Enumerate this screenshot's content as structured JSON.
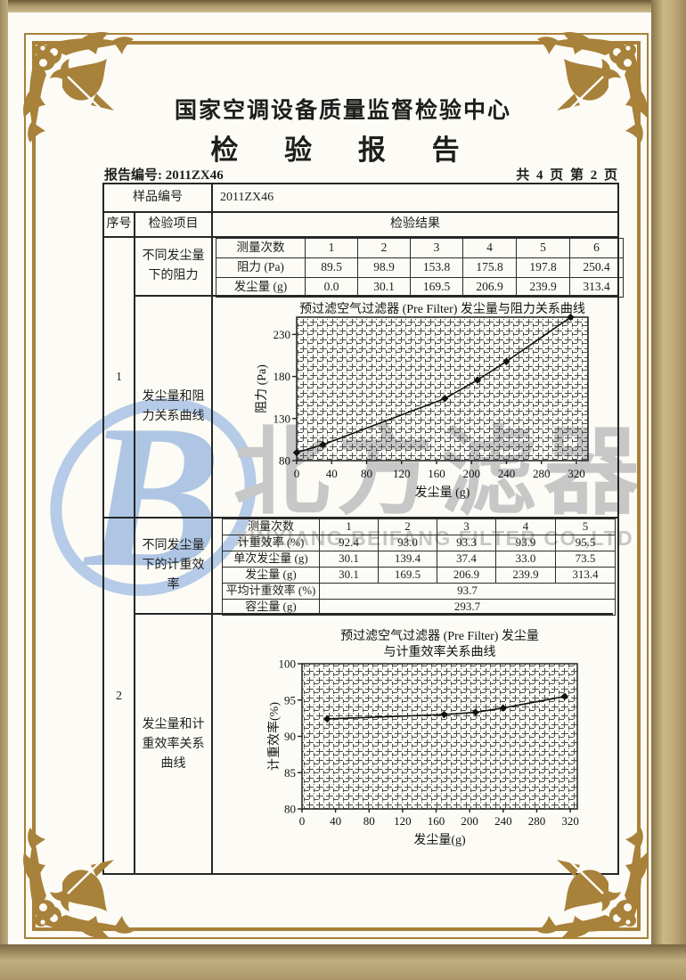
{
  "page": {
    "org_title": "国家空调设备质量监督检验中心",
    "report_title": "检 验 报 告",
    "report_no": "报告编号: 2011ZX46",
    "page_info": "共 4 页 第 2 页"
  },
  "sample": {
    "label": "样品编号",
    "value": "2011ZX46"
  },
  "columns": {
    "serial": "序号",
    "item": "检验项目",
    "result": "检验结果"
  },
  "section1": {
    "serial": "1",
    "item_table": "不同发尘量下的阻力",
    "item_chart": "发尘量和阻力关系曲线",
    "table": {
      "row_count_label": "测量次数",
      "row_resistance_label": "阻力 (Pa)",
      "row_dust_label": "发尘量 (g)",
      "counts": [
        "1",
        "2",
        "3",
        "4",
        "5",
        "6"
      ],
      "resistance": [
        "89.5",
        "98.9",
        "153.8",
        "175.8",
        "197.8",
        "250.4"
      ],
      "dust": [
        "0.0",
        "30.1",
        "169.5",
        "206.9",
        "239.9",
        "313.4"
      ]
    }
  },
  "section2": {
    "serial": "2",
    "item_table": "不同发尘量下的计重效率",
    "item_chart": "发尘量和计重效率关系曲线",
    "table": {
      "row_count_label": "测量次数",
      "row_eff_label": "计重效率 (%)",
      "row_single_label": "单次发尘量 (g)",
      "row_dust_label": "发尘量 (g)",
      "row_avg_label": "平均计重效率 (%)",
      "row_capacity_label": "容尘量 (g)",
      "counts": [
        "1",
        "2",
        "3",
        "4",
        "5"
      ],
      "efficiency": [
        "92.4",
        "93.0",
        "93.3",
        "93.9",
        "95.5"
      ],
      "single_dust": [
        "30.1",
        "139.4",
        "37.4",
        "33.0",
        "73.5"
      ],
      "dust": [
        "30.1",
        "169.5",
        "206.9",
        "239.9",
        "313.4"
      ],
      "avg_efficiency": "93.7",
      "dust_capacity": "293.7"
    }
  },
  "watermark": {
    "logo_letter": "B",
    "cn": "北方滤器",
    "en": "XINXIANG BEIFANG FILTER CO.,LTD",
    "blue": "#b5cbe7",
    "gray": "#c7c7c7"
  },
  "colors": {
    "frame_gold": "#a8813a",
    "ink": "#1e1e1e",
    "paper": "#fcfbf5"
  },
  "chart_data": [
    {
      "type": "line",
      "title": "预过滤空气过滤器 (Pre Filter) 发尘量与阻力关系曲线",
      "xlabel": "发尘量 (g)",
      "ylabel": "阻力 (Pa)",
      "x": [
        0,
        30.1,
        169.5,
        206.9,
        239.9,
        313.4
      ],
      "y": [
        89.5,
        98.9,
        153.8,
        175.8,
        197.8,
        250.4
      ],
      "xlim": [
        0,
        333.3
      ],
      "ylim": [
        80,
        250.5
      ],
      "xticks": [
        0,
        40,
        80,
        120,
        160,
        200,
        240,
        280,
        320
      ],
      "yticks": [
        80,
        130,
        180,
        230
      ],
      "grid": "dense-mesh",
      "legend": "none",
      "marker": "diamond"
    },
    {
      "type": "line",
      "title": "预过滤空气过滤器 (Pre Filter) 发尘量\n与计重效率关系曲线",
      "xlabel": "发尘量(g)",
      "ylabel": "计重效率(%)",
      "x": [
        30.1,
        169.5,
        206.9,
        239.9,
        313.4
      ],
      "y": [
        92.4,
        93.0,
        93.3,
        93.9,
        95.5
      ],
      "xlim": [
        0,
        328.4
      ],
      "ylim": [
        80,
        100
      ],
      "xticks": [
        0,
        40,
        80,
        120,
        160,
        200,
        240,
        280,
        320
      ],
      "yticks": [
        80,
        85,
        90,
        95,
        100
      ],
      "grid": "dense-mesh",
      "legend": "none",
      "marker": "diamond"
    }
  ]
}
